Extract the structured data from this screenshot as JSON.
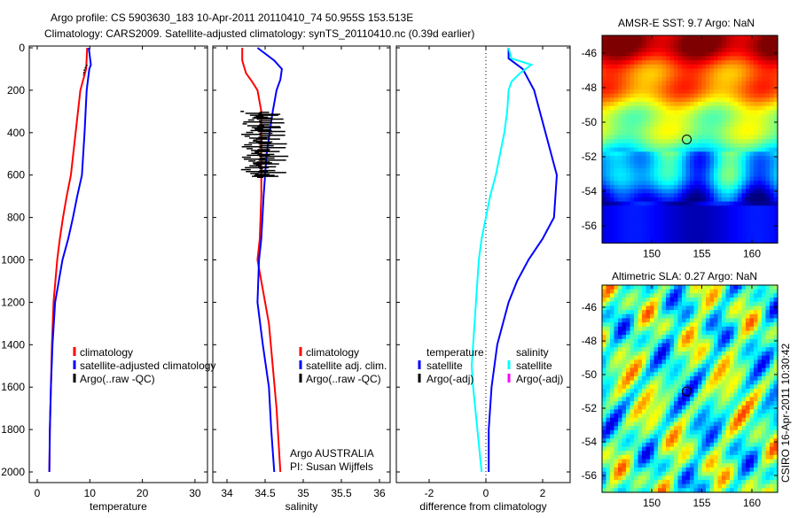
{
  "title": {
    "line1": "Argo profile: CS 5903630_183 10-Apr-2011 20110410_74 50.955S 153.513E",
    "line2": "Climatology: CARS2009. Satellite-adjusted climatology: synTS_20110410.nc (0.39d earlier)"
  },
  "chart_data": [
    {
      "type": "line",
      "name": "temperature-profile",
      "xlabel": "temperature",
      "ylabel": "",
      "xlim": [
        -2,
        32
      ],
      "ylim": [
        0,
        2050
      ],
      "xticks": [
        "0",
        "10",
        "20",
        "30"
      ],
      "yticks": [
        "0",
        "200",
        "400",
        "600",
        "800",
        "1000",
        "1200",
        "1400",
        "1600",
        "1800",
        "2000"
      ],
      "legend": [
        "climatology",
        "satellite-adjusted climatology",
        "Argo(..raw -QC)"
      ],
      "series": [
        {
          "name": "climatology",
          "color": "#ff0000",
          "depth": [
            0,
            100,
            200,
            400,
            600,
            700,
            800,
            900,
            1000,
            1200,
            1400,
            1600,
            1800,
            2000
          ],
          "values": [
            9.5,
            9.3,
            8.2,
            7.3,
            6.4,
            5.6,
            4.9,
            4.3,
            3.8,
            3.1,
            2.8,
            2.6,
            2.4,
            2.3
          ]
        },
        {
          "name": "satellite-adjusted climatology",
          "color": "#0000ff",
          "depth": [
            0,
            80,
            100,
            200,
            400,
            600,
            700,
            800,
            900,
            1000,
            1200,
            1400,
            1600,
            1800,
            2000
          ],
          "values": [
            9.8,
            10.2,
            9.9,
            9.4,
            9.0,
            8.5,
            7.6,
            6.8,
            5.9,
            4.8,
            3.4,
            2.9,
            2.6,
            2.4,
            2.3
          ]
        },
        {
          "name": "Argo(..raw -QC)",
          "color": "#000000",
          "depth": [
            80,
            100,
            130
          ],
          "values": [
            9.5,
            9.0,
            8.8
          ]
        }
      ]
    },
    {
      "type": "line",
      "name": "salinity-profile",
      "xlabel": "salinity",
      "xlim": [
        33.9,
        36.05
      ],
      "ylim": [
        0,
        2050
      ],
      "xticks": [
        "34",
        "34.5",
        "35",
        "35.5",
        "36"
      ],
      "legend": [
        "climatology",
        "satellite adj. clim.",
        "Argo(..raw -QC)"
      ],
      "annotation": [
        "Argo AUSTRALIA",
        "PI: Susan Wijffels"
      ],
      "series": [
        {
          "name": "climatology",
          "color": "#ff0000",
          "depth": [
            0,
            60,
            120,
            160,
            200,
            300,
            500,
            700,
            900,
            1000,
            1100,
            1300,
            1500,
            1700,
            2000
          ],
          "values": [
            34.2,
            34.2,
            34.25,
            34.33,
            34.4,
            34.45,
            34.45,
            34.45,
            34.43,
            34.4,
            34.45,
            34.55,
            34.6,
            34.65,
            34.7
          ]
        },
        {
          "name": "satellite adj. clim.",
          "color": "#0000ff",
          "depth": [
            0,
            60,
            100,
            150,
            200,
            300,
            500,
            700,
            900,
            1000,
            1200,
            1400,
            1600,
            1800,
            2000
          ],
          "values": [
            34.4,
            34.62,
            34.72,
            34.7,
            34.65,
            34.6,
            34.52,
            34.48,
            34.45,
            34.42,
            34.4,
            34.47,
            34.55,
            34.58,
            34.62
          ]
        },
        {
          "name": "Argo(..raw -QC)",
          "color": "#000000",
          "depth": [
            300,
            620
          ],
          "values": [
            34.2,
            34.45
          ]
        }
      ]
    },
    {
      "type": "line",
      "name": "difference-profile",
      "xlabel": "difference from climatology",
      "xlim": [
        -3.2,
        3
      ],
      "ylim": [
        0,
        2050
      ],
      "xticks": [
        "-2",
        "0",
        "2"
      ],
      "legend": {
        "temperature": [
          "satellite",
          "Argo(-adj)"
        ],
        "salinity": [
          "satellite",
          "Argo(-adj)"
        ],
        "temperature_title": "temperature",
        "salinity_title": "salinity"
      },
      "series": [
        {
          "name": "temperature satellite",
          "color": "#0000ff",
          "depth": [
            0,
            50,
            100,
            150,
            200,
            300,
            400,
            500,
            600,
            700,
            800,
            900,
            1000,
            1100,
            1200,
            1400,
            1600,
            1800,
            2000
          ],
          "values": [
            0.8,
            0.8,
            1.3,
            1.5,
            1.7,
            1.9,
            2.1,
            2.3,
            2.5,
            2.45,
            2.4,
            2.0,
            1.5,
            1.1,
            0.8,
            0.4,
            0.2,
            0.1,
            0.1
          ]
        },
        {
          "name": "salinity satellite",
          "color": "#00ffff",
          "depth": [
            0,
            50,
            80,
            120,
            160,
            200,
            300,
            400,
            500,
            600,
            700,
            800,
            900,
            1000,
            1200,
            1400,
            1500,
            1600,
            1800,
            2000
          ],
          "values": [
            0.8,
            0.9,
            1.6,
            1.2,
            0.9,
            0.8,
            0.75,
            0.65,
            0.5,
            0.35,
            0.15,
            0.0,
            -0.15,
            -0.25,
            -0.35,
            -0.45,
            -0.5,
            -0.45,
            -0.3,
            -0.15
          ]
        }
      ]
    },
    {
      "type": "heatmap",
      "name": "sst-map",
      "title": "AMSR-E SST: 9.7 Argo: NaN",
      "xticks": [
        "150",
        "155",
        "160"
      ],
      "yticks": [
        "-46",
        "-48",
        "-50",
        "-52",
        "-54",
        "-56"
      ],
      "xlim": [
        145.5,
        161.5
      ],
      "ylim": [
        -57,
        -45
      ],
      "marker": {
        "lon": 153.5,
        "lat": -51
      }
    },
    {
      "type": "heatmap",
      "name": "sla-map",
      "title": "Altimetric SLA: 0.27 Argo: NaN",
      "xticks": [
        "150",
        "155",
        "160"
      ],
      "yticks": [
        "-46",
        "-48",
        "-50",
        "-52",
        "-54",
        "-56"
      ],
      "xlim": [
        145.5,
        161.5
      ],
      "ylim": [
        -57,
        -45
      ],
      "marker": {
        "lon": 153.5,
        "lat": -51
      }
    }
  ],
  "side_label": "CSIRO 16-Apr-2011 10:30:42"
}
